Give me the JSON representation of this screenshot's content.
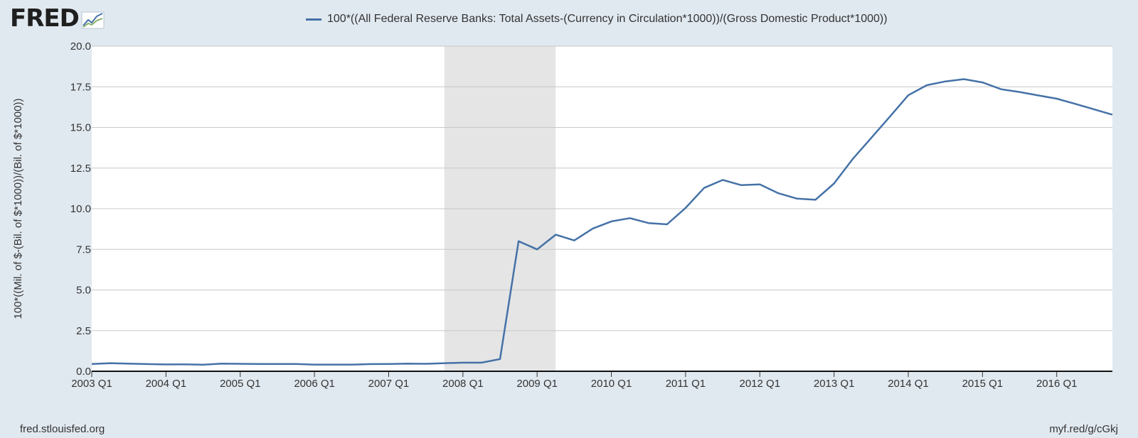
{
  "logo": {
    "text": "FRED",
    "icon": "trend-line-icon"
  },
  "footer": {
    "source": "fred.stlouisfed.org",
    "shortlink": "myf.red/g/cGkj"
  },
  "colors": {
    "series": "#4572a7",
    "recession": "#e5e5e5",
    "grid": "#c8c8c8",
    "background": "#e1e9f0",
    "plot": "#ffffff"
  },
  "chart_data": {
    "type": "line",
    "title": "",
    "ylabel": "100*((Mil. of $-(Bil. of $*1000))/(Bil. of $*1000))",
    "xlabel": "",
    "ylim": [
      0,
      20
    ],
    "yticks": [
      "0.0",
      "2.5",
      "5.0",
      "7.5",
      "10.0",
      "12.5",
      "15.0",
      "17.5",
      "20.0"
    ],
    "xticks": [
      "2003 Q1",
      "2004 Q1",
      "2005 Q1",
      "2006 Q1",
      "2007 Q1",
      "2008 Q1",
      "2009 Q1",
      "2010 Q1",
      "2011 Q1",
      "2012 Q1",
      "2013 Q1",
      "2014 Q1",
      "2015 Q1",
      "2016 Q1"
    ],
    "grid": true,
    "legend_position": "top",
    "recession_shading": {
      "start": "2007 Q4",
      "end": "2009 Q2"
    },
    "x": [
      "2003 Q1",
      "2003 Q2",
      "2003 Q3",
      "2003 Q4",
      "2004 Q1",
      "2004 Q2",
      "2004 Q3",
      "2004 Q4",
      "2005 Q1",
      "2005 Q2",
      "2005 Q3",
      "2005 Q4",
      "2006 Q1",
      "2006 Q2",
      "2006 Q3",
      "2006 Q4",
      "2007 Q1",
      "2007 Q2",
      "2007 Q3",
      "2007 Q4",
      "2008 Q1",
      "2008 Q2",
      "2008 Q3",
      "2008 Q4",
      "2009 Q1",
      "2009 Q2",
      "2009 Q3",
      "2009 Q4",
      "2010 Q1",
      "2010 Q2",
      "2010 Q3",
      "2010 Q4",
      "2011 Q1",
      "2011 Q2",
      "2011 Q3",
      "2011 Q4",
      "2012 Q1",
      "2012 Q2",
      "2012 Q3",
      "2012 Q4",
      "2013 Q1",
      "2013 Q2",
      "2013 Q3",
      "2013 Q4",
      "2014 Q1",
      "2014 Q2",
      "2014 Q3",
      "2014 Q4",
      "2015 Q1",
      "2015 Q2",
      "2015 Q3",
      "2015 Q4",
      "2016 Q1",
      "2016 Q2",
      "2016 Q3",
      "2016 Q4"
    ],
    "series": [
      {
        "name": "100*((All Federal Reserve Banks: Total Assets-(Currency in Circulation*1000))/(Gross Domestic Product*1000))",
        "values": [
          0.45,
          0.5,
          0.47,
          0.44,
          0.42,
          0.43,
          0.4,
          0.47,
          0.46,
          0.45,
          0.45,
          0.45,
          0.41,
          0.41,
          0.41,
          0.44,
          0.45,
          0.47,
          0.46,
          0.5,
          0.53,
          0.53,
          0.75,
          8.0,
          7.5,
          8.4,
          8.05,
          8.78,
          9.22,
          9.42,
          9.12,
          9.04,
          10.05,
          11.28,
          11.77,
          11.45,
          11.5,
          10.95,
          10.62,
          10.55,
          11.55,
          13.05,
          14.35,
          15.65,
          16.98,
          17.6,
          17.83,
          17.97,
          17.77,
          17.35,
          17.18,
          16.97,
          16.77,
          16.45,
          16.12,
          15.78
        ]
      }
    ]
  }
}
